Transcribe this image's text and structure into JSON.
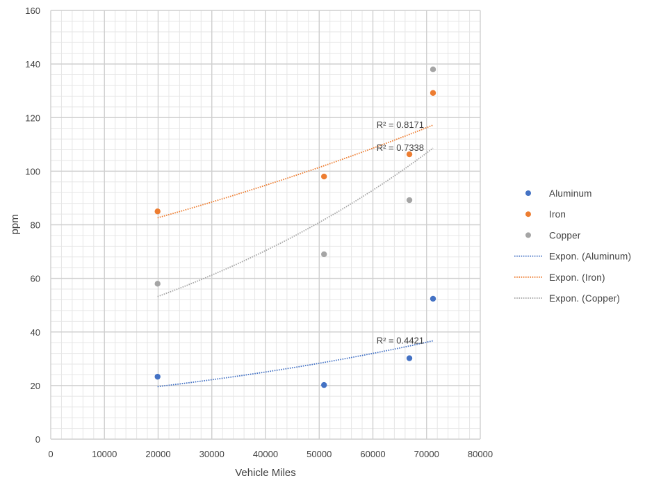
{
  "chart_data": {
    "type": "scatter",
    "xlabel": "Vehicle Miles",
    "ylabel": "ppm",
    "xlim": [
      0,
      80000
    ],
    "ylim": [
      0,
      160
    ],
    "x_ticks": [
      "0",
      "10000",
      "20000",
      "30000",
      "40000",
      "50000",
      "60000",
      "70000",
      "80000"
    ],
    "y_ticks": [
      "0",
      "20",
      "40",
      "60",
      "80",
      "100",
      "120",
      "140",
      "160"
    ],
    "grid": true,
    "legend_position": "right",
    "series": [
      {
        "name": "Aluminum",
        "color": "#4472C4",
        "points": [
          [
            19900,
            23.3
          ],
          [
            50900,
            20.2
          ],
          [
            66800,
            30.2
          ],
          [
            71200,
            52.4
          ]
        ]
      },
      {
        "name": "Iron",
        "color": "#ED7D31",
        "points": [
          [
            19900,
            85
          ],
          [
            50900,
            98
          ],
          [
            66800,
            106.3
          ],
          [
            71200,
            129.2
          ]
        ]
      },
      {
        "name": "Copper",
        "color": "#A5A5A5",
        "points": [
          [
            19900,
            58
          ],
          [
            50900,
            69
          ],
          [
            66800,
            89.2
          ],
          [
            71200,
            138
          ]
        ]
      }
    ],
    "trendlines": [
      {
        "name": "Expon. (Aluminum)",
        "type": "exponential",
        "color": "#4472C4",
        "x_range": [
          19900,
          71200
        ],
        "y_start": 19.6,
        "y_end": 36.7,
        "r_squared": "R² = 0.4421"
      },
      {
        "name": "Expon. (Iron)",
        "type": "exponential",
        "color": "#ED7D31",
        "x_range": [
          19900,
          71200
        ],
        "y_start": 82.6,
        "y_end": 117.2,
        "r_squared": "R² = 0.8171"
      },
      {
        "name": "Expon. (Copper)",
        "type": "exponential",
        "color": "#A5A5A5",
        "x_range": [
          19900,
          71200
        ],
        "y_start": 53.2,
        "y_end": 108.6,
        "r_squared": "R² = 0.7338"
      }
    ]
  }
}
